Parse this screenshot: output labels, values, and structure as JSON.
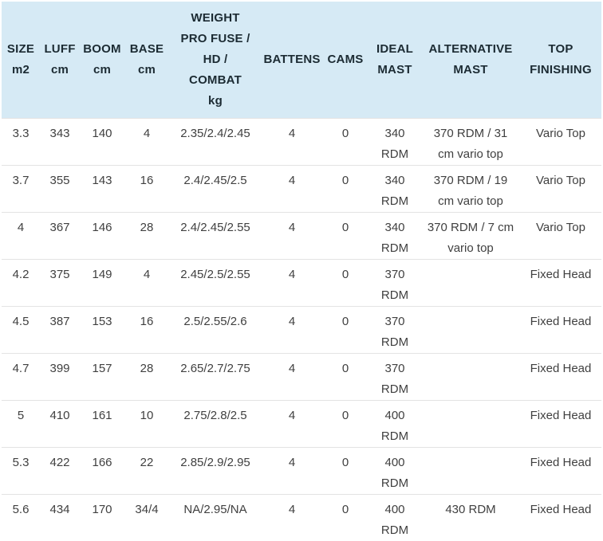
{
  "table": {
    "header_bg": "#d6eaf5",
    "header_text_color": "#1c2b33",
    "body_text_color": "#404040",
    "divider_color": "#e3e3e3",
    "columns": [
      {
        "id": "size",
        "label": "SIZE\nm2"
      },
      {
        "id": "luff",
        "label": "LUFF\ncm"
      },
      {
        "id": "boom",
        "label": "BOOM\ncm"
      },
      {
        "id": "base",
        "label": "BASE\ncm"
      },
      {
        "id": "weight",
        "label": "WEIGHT\nPRO FUSE /\nHD /\nCOMBAT\nkg"
      },
      {
        "id": "battens",
        "label": "BATTENS"
      },
      {
        "id": "cams",
        "label": "CAMS"
      },
      {
        "id": "ideal-mast",
        "label": "IDEAL\nMAST"
      },
      {
        "id": "alt-mast",
        "label": "ALTERNATIVE\nMAST"
      },
      {
        "id": "top-finishing",
        "label": "TOP\nFINISHING"
      }
    ],
    "rows": [
      [
        "3.3",
        "343",
        "140",
        "4",
        "2.35/2.4/2.45",
        "4",
        "0",
        "340\nRDM",
        "370 RDM / 31\ncm vario top",
        "Vario Top"
      ],
      [
        "3.7",
        "355",
        "143",
        "16",
        "2.4/2.45/2.5",
        "4",
        "0",
        "340\nRDM",
        "370 RDM / 19\ncm vario top",
        "Vario Top"
      ],
      [
        "4",
        "367",
        "146",
        "28",
        "2.4/2.45/2.55",
        "4",
        "0",
        "340\nRDM",
        "370 RDM / 7 cm\nvario top",
        "Vario Top"
      ],
      [
        "4.2",
        "375",
        "149",
        "4",
        "2.45/2.5/2.55",
        "4",
        "0",
        "370\nRDM",
        "",
        "Fixed Head"
      ],
      [
        "4.5",
        "387",
        "153",
        "16",
        "2.5/2.55/2.6",
        "4",
        "0",
        "370\nRDM",
        "",
        "Fixed Head"
      ],
      [
        "4.7",
        "399",
        "157",
        "28",
        "2.65/2.7/2.75",
        "4",
        "0",
        "370\nRDM",
        "",
        "Fixed Head"
      ],
      [
        "5",
        "410",
        "161",
        "10",
        "2.75/2.8/2.5",
        "4",
        "0",
        "400\nRDM",
        "",
        "Fixed Head"
      ],
      [
        "5.3",
        "422",
        "166",
        "22",
        "2.85/2.9/2.95",
        "4",
        "0",
        "400\nRDM",
        "",
        "Fixed Head"
      ],
      [
        "5.6",
        "434",
        "170",
        "34/4",
        "NA/2.95/NA",
        "4",
        "0",
        "400\nRDM",
        "430 RDM",
        "Fixed Head"
      ]
    ]
  }
}
